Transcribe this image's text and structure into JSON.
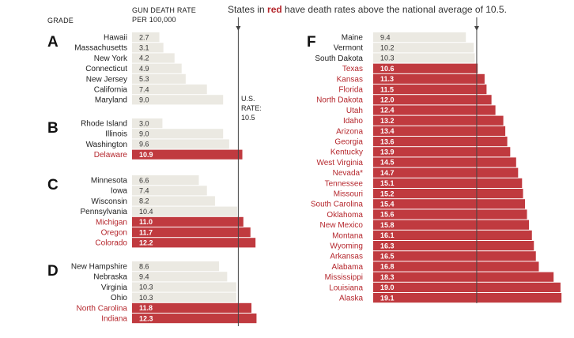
{
  "header": {
    "grade_label": "GRADE",
    "rate_label_line1": "GUN DEATH RATE",
    "rate_label_line2": "PER 100,000",
    "note_prefix": "States in ",
    "note_highlight": "red",
    "note_suffix": " have death rates above the national average of 10.5."
  },
  "reference": {
    "label_line1": "U.S.",
    "label_line2": "RATE:",
    "label_line3": "10.5",
    "value": 10.5
  },
  "colors": {
    "above_average": "#c03a3f",
    "below_average": "#ebe9e2",
    "above_text": "#b5272d",
    "reference_line": "#444444"
  },
  "chart_data": {
    "type": "bar",
    "orientation": "horizontal",
    "national_average": 10.5,
    "groups": [
      {
        "grade": "A",
        "states": [
          {
            "name": "Hawaii",
            "value": 2.7
          },
          {
            "name": "Massachusetts",
            "value": 3.1
          },
          {
            "name": "New York",
            "value": 4.2
          },
          {
            "name": "Connecticut",
            "value": 4.9
          },
          {
            "name": "New Jersey",
            "value": 5.3
          },
          {
            "name": "California",
            "value": 7.4
          },
          {
            "name": "Maryland",
            "value": 9.0
          }
        ]
      },
      {
        "grade": "B",
        "states": [
          {
            "name": "Rhode Island",
            "value": 3.0
          },
          {
            "name": "Illinois",
            "value": 9.0
          },
          {
            "name": "Washington",
            "value": 9.6
          },
          {
            "name": "Delaware",
            "value": 10.9
          }
        ]
      },
      {
        "grade": "C",
        "states": [
          {
            "name": "Minnesota",
            "value": 6.6
          },
          {
            "name": "Iowa",
            "value": 7.4
          },
          {
            "name": "Wisconsin",
            "value": 8.2
          },
          {
            "name": "Pennsylvania",
            "value": 10.4
          },
          {
            "name": "Michigan",
            "value": 11.0
          },
          {
            "name": "Oregon",
            "value": 11.7
          },
          {
            "name": "Colorado",
            "value": 12.2
          }
        ]
      },
      {
        "grade": "D",
        "states": [
          {
            "name": "New Hampshire",
            "value": 8.6
          },
          {
            "name": "Nebraska",
            "value": 9.4
          },
          {
            "name": "Virginia",
            "value": 10.3
          },
          {
            "name": "Ohio",
            "value": 10.3
          },
          {
            "name": "North Carolina",
            "value": 11.8
          },
          {
            "name": "Indiana",
            "value": 12.3
          }
        ]
      },
      {
        "grade": "F",
        "states": [
          {
            "name": "Maine",
            "value": 9.4
          },
          {
            "name": "Vermont",
            "value": 10.2
          },
          {
            "name": "South Dakota",
            "value": 10.3
          },
          {
            "name": "Texas",
            "value": 10.6
          },
          {
            "name": "Kansas",
            "value": 11.3
          },
          {
            "name": "Florida",
            "value": 11.5
          },
          {
            "name": "North Dakota",
            "value": 12.0
          },
          {
            "name": "Utah",
            "value": 12.4
          },
          {
            "name": "Idaho",
            "value": 13.2
          },
          {
            "name": "Arizona",
            "value": 13.4
          },
          {
            "name": "Georgia",
            "value": 13.6
          },
          {
            "name": "Kentucky",
            "value": 13.9
          },
          {
            "name": "West Virginia",
            "value": 14.5
          },
          {
            "name": "Nevada*",
            "value": 14.7
          },
          {
            "name": "Tennessee",
            "value": 15.1
          },
          {
            "name": "Missouri",
            "value": 15.2
          },
          {
            "name": "South Carolina",
            "value": 15.4
          },
          {
            "name": "Oklahoma",
            "value": 15.6
          },
          {
            "name": "New Mexico",
            "value": 15.8
          },
          {
            "name": "Montana",
            "value": 16.1
          },
          {
            "name": "Wyoming",
            "value": 16.3
          },
          {
            "name": "Arkansas",
            "value": 16.5
          },
          {
            "name": "Alabama",
            "value": 16.8
          },
          {
            "name": "Mississippi",
            "value": 18.3
          },
          {
            "name": "Louisiana",
            "value": 19.0
          },
          {
            "name": "Alaska",
            "value": 19.1
          }
        ]
      }
    ]
  }
}
